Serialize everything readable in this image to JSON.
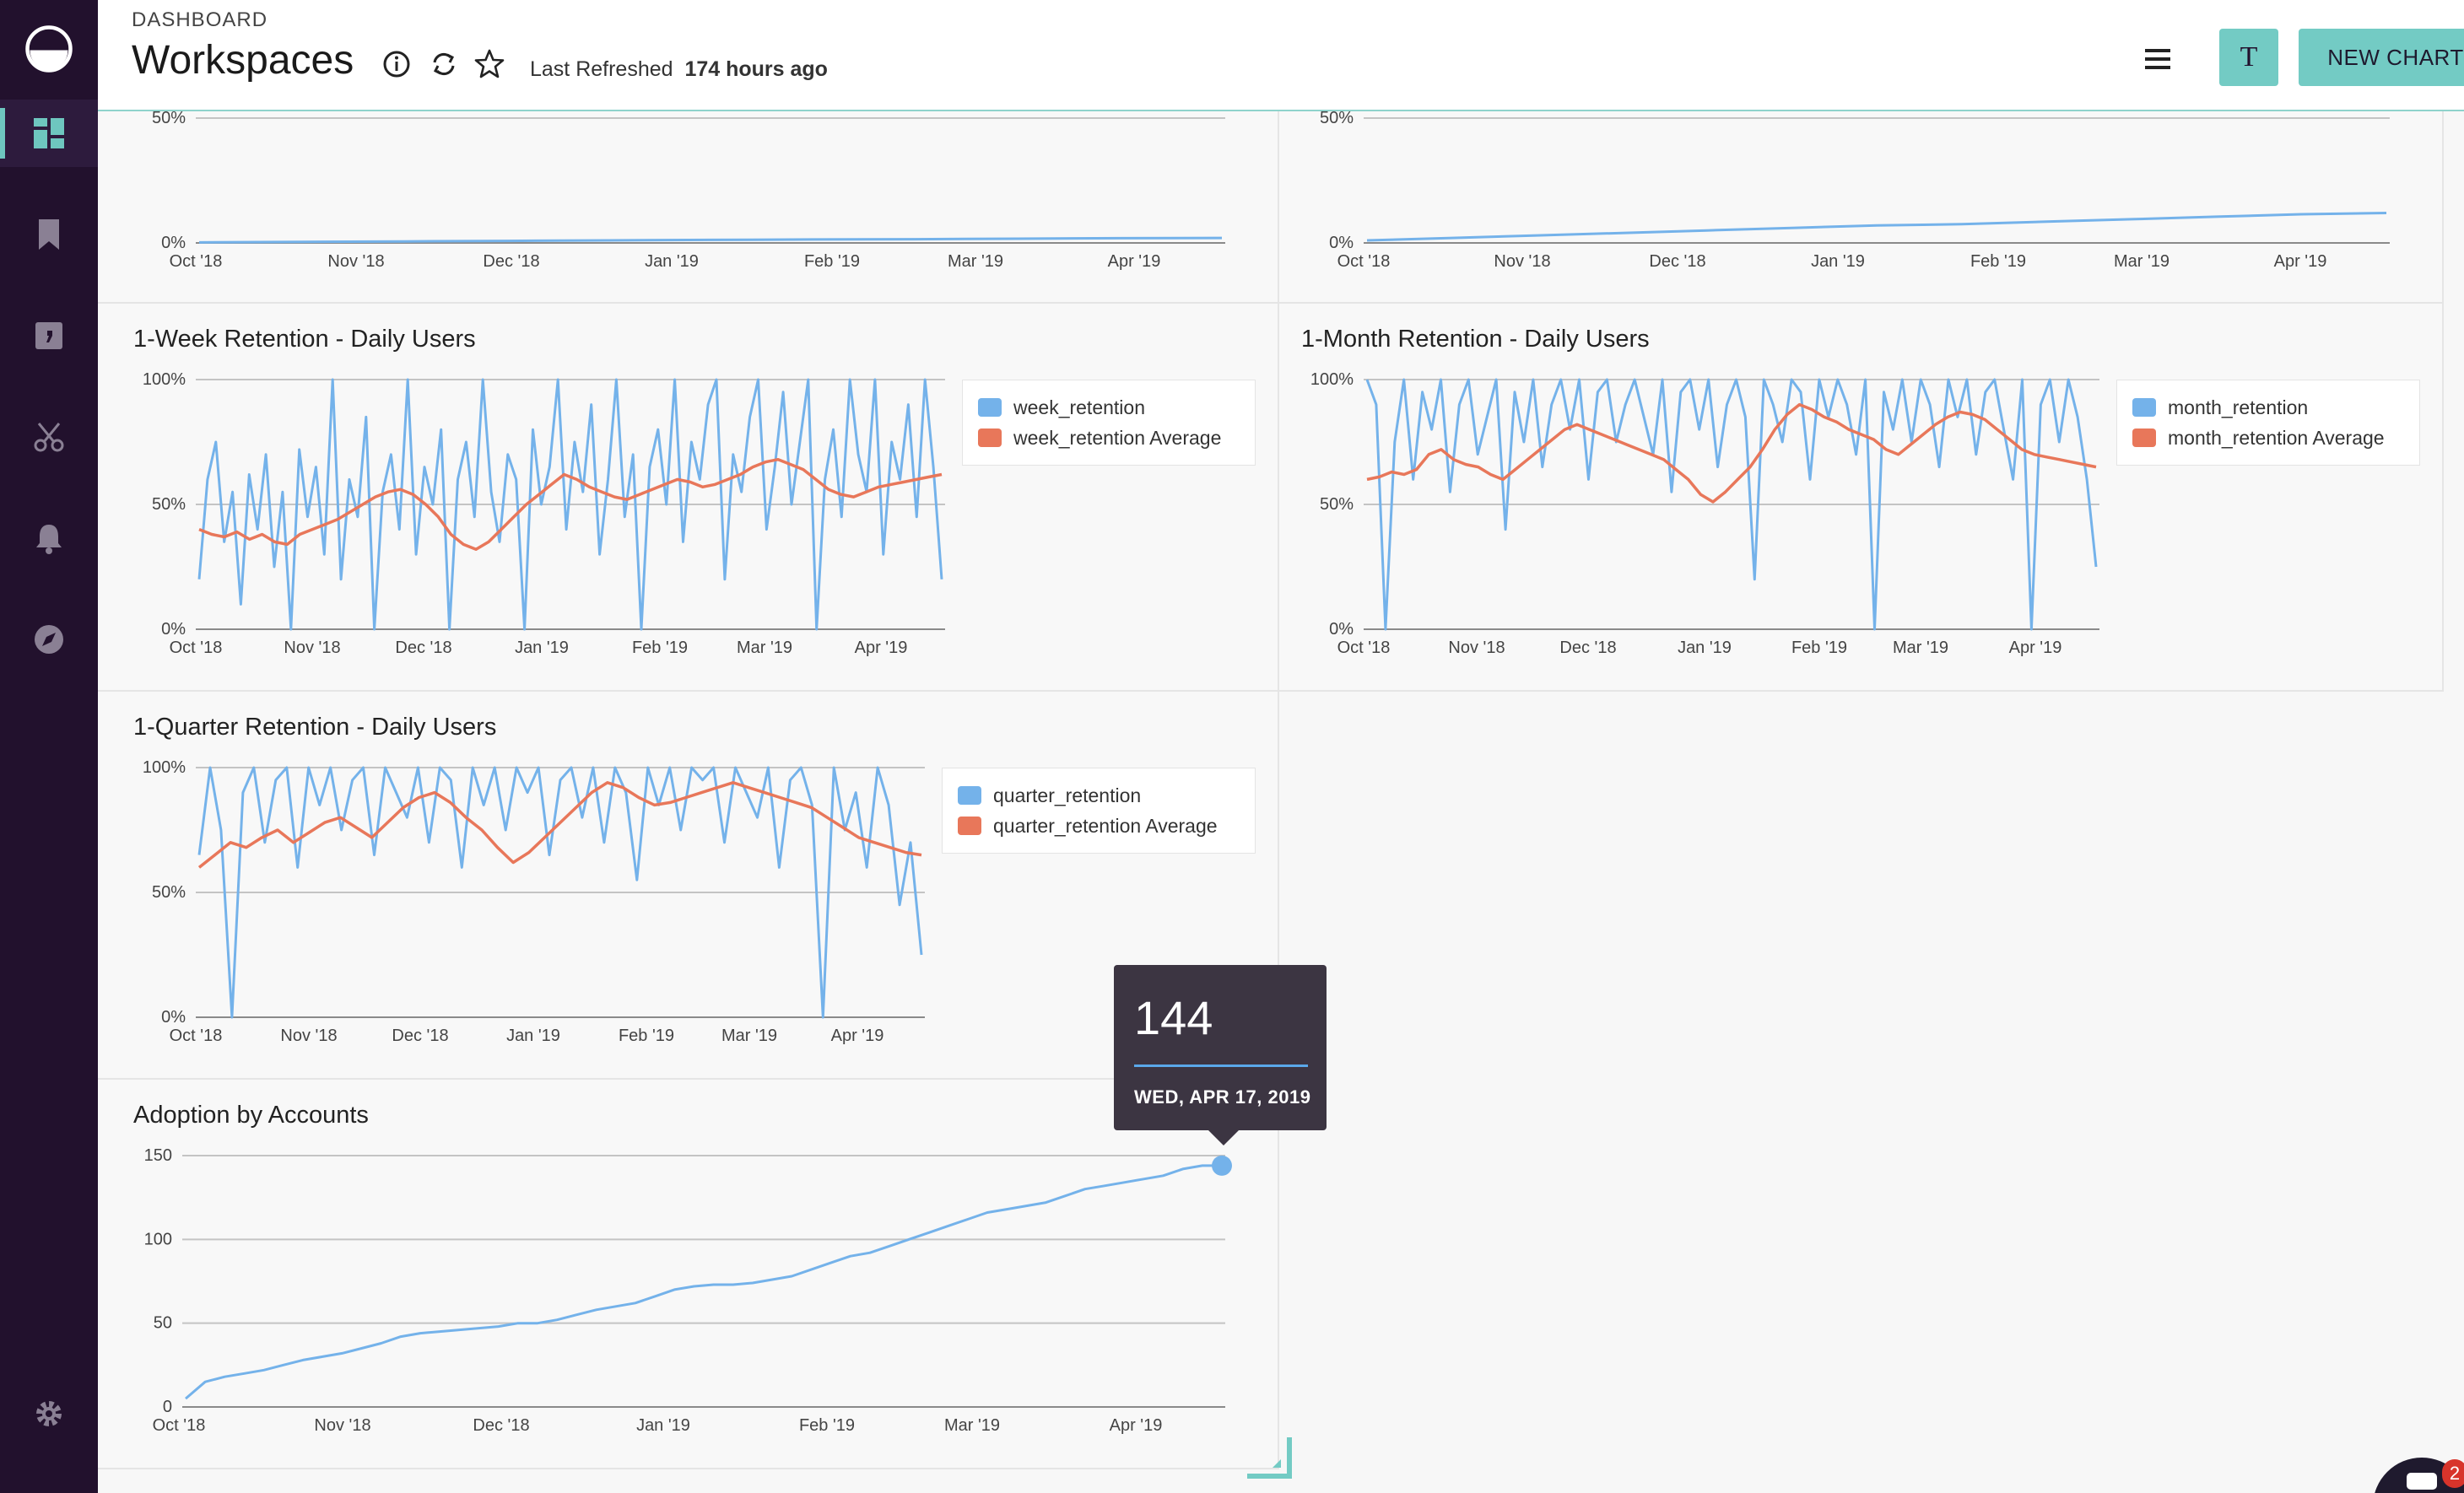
{
  "header": {
    "breadcrumb": "DASHBOARD",
    "title": "Workspaces",
    "last_refreshed_label": "Last Refreshed",
    "last_refreshed_value": "174 hours ago",
    "avatar_letter": "T",
    "new_chart_label": "NEW CHART"
  },
  "sidebar": {
    "items": [
      {
        "icon": "logo-icon"
      },
      {
        "icon": "dashboard-icon",
        "active": true
      },
      {
        "icon": "bookmark-icon"
      },
      {
        "icon": "reports-icon"
      },
      {
        "icon": "scissors-icon"
      },
      {
        "icon": "bell-icon"
      },
      {
        "icon": "compass-icon"
      },
      {
        "icon": "gear-icon"
      }
    ]
  },
  "colors": {
    "sidebar": "#22112d",
    "accent": "#73cbc4",
    "series_blue": "#74b2ea",
    "series_orange": "#e8775a"
  },
  "tooltip": {
    "value": "144",
    "date": "WED, APR 17, 2019"
  },
  "notification_badge": "2",
  "panels": {
    "top_left": {
      "title": ""
    },
    "top_right": {
      "title": ""
    },
    "week": {
      "title": "1-Week Retention - Daily Users"
    },
    "month": {
      "title": "1-Month Retention - Daily Users"
    },
    "quarter": {
      "title": "1-Quarter Retention - Daily Users"
    },
    "adoption": {
      "title": "Adoption by Accounts"
    }
  },
  "chart_data": [
    {
      "id": "top_left",
      "type": "line",
      "title": "",
      "x_ticks": [
        "Oct '18",
        "Nov '18",
        "Dec '18",
        "Jan '19",
        "Feb '19",
        "Mar '19",
        "Apr '19"
      ],
      "y_ticks": [
        "0%",
        "50%"
      ],
      "ylim": [
        0,
        50
      ],
      "series": [
        {
          "values": [
            0.2,
            0.4,
            0.6,
            0.8,
            1.0,
            1.2,
            1.4,
            1.5,
            1.7,
            1.9,
            2.0
          ]
        }
      ]
    },
    {
      "id": "top_right",
      "type": "line",
      "title": "",
      "x_ticks": [
        "Oct '18",
        "Nov '18",
        "Dec '18",
        "Jan '19",
        "Feb '19",
        "Mar '19",
        "Apr '19"
      ],
      "y_ticks": [
        "0%",
        "50%"
      ],
      "ylim": [
        0,
        50
      ],
      "series": [
        {
          "values": [
            1,
            2,
            3,
            4,
            5,
            6,
            7,
            7.5,
            8.5,
            9.5,
            10.5,
            11.5,
            12
          ]
        }
      ]
    },
    {
      "id": "week",
      "type": "line",
      "title": "1-Week Retention - Daily Users",
      "x_ticks": [
        "Oct '18",
        "Nov '18",
        "Dec '18",
        "Jan '19",
        "Feb '19",
        "Mar '19",
        "Apr '19"
      ],
      "y_ticks": [
        "0%",
        "50%",
        "100%"
      ],
      "ylim": [
        0,
        100
      ],
      "legend": [
        "week_retention",
        "week_retention Average"
      ],
      "series": [
        {
          "name": "week_retention",
          "values": [
            20,
            60,
            75,
            35,
            55,
            10,
            62,
            40,
            70,
            25,
            55,
            0,
            72,
            45,
            65,
            30,
            100,
            20,
            60,
            45,
            85,
            0,
            55,
            70,
            40,
            100,
            30,
            65,
            50,
            80,
            0,
            60,
            75,
            45,
            100,
            55,
            35,
            70,
            60,
            0,
            80,
            50,
            65,
            100,
            40,
            75,
            55,
            90,
            30,
            60,
            100,
            45,
            70,
            0,
            65,
            80,
            50,
            100,
            35,
            75,
            60,
            90,
            100,
            20,
            70,
            55,
            85,
            100,
            40,
            65,
            95,
            50,
            75,
            100,
            0,
            60,
            80,
            45,
            100,
            70,
            55,
            100,
            30,
            75,
            60,
            90,
            45,
            100,
            65,
            20
          ]
        },
        {
          "name": "week_retention Average",
          "values": [
            40,
            38,
            37,
            39,
            36,
            38,
            35,
            34,
            38,
            40,
            42,
            44,
            47,
            50,
            53,
            55,
            56,
            54,
            50,
            45,
            38,
            34,
            32,
            35,
            40,
            45,
            50,
            54,
            58,
            62,
            60,
            57,
            55,
            53,
            52,
            54,
            56,
            58,
            60,
            59,
            57,
            58,
            60,
            62,
            65,
            67,
            68,
            66,
            64,
            60,
            56,
            54,
            53,
            55,
            57,
            58,
            59,
            60,
            61,
            62
          ]
        }
      ]
    },
    {
      "id": "month",
      "type": "line",
      "title": "1-Month Retention - Daily Users",
      "x_ticks": [
        "Oct '18",
        "Nov '18",
        "Dec '18",
        "Jan '19",
        "Feb '19",
        "Mar '19",
        "Apr '19"
      ],
      "y_ticks": [
        "0%",
        "50%",
        "100%"
      ],
      "ylim": [
        0,
        100
      ],
      "legend": [
        "month_retention",
        "month_retention Average"
      ],
      "series": [
        {
          "name": "month_retention",
          "values": [
            100,
            90,
            0,
            75,
            100,
            60,
            95,
            80,
            100,
            55,
            90,
            100,
            70,
            85,
            100,
            40,
            95,
            75,
            100,
            65,
            90,
            100,
            80,
            100,
            60,
            95,
            100,
            75,
            90,
            100,
            85,
            70,
            100,
            55,
            95,
            100,
            80,
            100,
            65,
            90,
            100,
            85,
            20,
            100,
            90,
            75,
            100,
            95,
            60,
            100,
            85,
            100,
            90,
            70,
            100,
            0,
            95,
            80,
            100,
            75,
            100,
            90,
            65,
            100,
            85,
            100,
            70,
            95,
            100,
            80,
            60,
            100,
            0,
            90,
            100,
            75,
            100,
            85,
            60,
            25
          ]
        },
        {
          "name": "month_retention Average",
          "values": [
            60,
            61,
            63,
            62,
            64,
            70,
            72,
            68,
            66,
            65,
            62,
            60,
            64,
            68,
            72,
            76,
            80,
            82,
            80,
            78,
            76,
            74,
            72,
            70,
            68,
            64,
            60,
            54,
            51,
            55,
            60,
            65,
            72,
            80,
            86,
            90,
            88,
            85,
            83,
            80,
            78,
            76,
            72,
            70,
            74,
            78,
            82,
            85,
            87,
            86,
            84,
            80,
            76,
            72,
            70,
            69,
            68,
            67,
            66,
            65
          ]
        }
      ]
    },
    {
      "id": "quarter",
      "type": "line",
      "title": "1-Quarter Retention - Daily Users",
      "x_ticks": [
        "Oct '18",
        "Nov '18",
        "Dec '18",
        "Jan '19",
        "Feb '19",
        "Mar '19",
        "Apr '19"
      ],
      "y_ticks": [
        "0%",
        "50%",
        "100%"
      ],
      "ylim": [
        0,
        100
      ],
      "legend": [
        "quarter_retention",
        "quarter_retention Average"
      ],
      "series": [
        {
          "name": "quarter_retention",
          "values": [
            65,
            100,
            75,
            0,
            90,
            100,
            70,
            95,
            100,
            60,
            100,
            85,
            100,
            75,
            95,
            100,
            65,
            100,
            90,
            80,
            100,
            70,
            100,
            95,
            60,
            100,
            85,
            100,
            75,
            100,
            90,
            100,
            65,
            95,
            100,
            80,
            100,
            70,
            100,
            90,
            55,
            100,
            85,
            100,
            75,
            100,
            95,
            100,
            70,
            100,
            90,
            80,
            100,
            60,
            95,
            100,
            85,
            0,
            100,
            75,
            90,
            60,
            100,
            85,
            45,
            70,
            25
          ]
        },
        {
          "name": "quarter_retention Average",
          "values": [
            60,
            65,
            70,
            68,
            72,
            75,
            70,
            74,
            78,
            80,
            76,
            72,
            78,
            84,
            88,
            90,
            86,
            80,
            75,
            68,
            62,
            66,
            72,
            78,
            84,
            90,
            94,
            92,
            88,
            85,
            86,
            88,
            90,
            92,
            94,
            92,
            90,
            88,
            86,
            84,
            80,
            76,
            72,
            70,
            68,
            66,
            65
          ]
        }
      ]
    },
    {
      "id": "adoption",
      "type": "line",
      "title": "Adoption by Accounts",
      "x_ticks": [
        "Oct '18",
        "Nov '18",
        "Dec '18",
        "Jan '19",
        "Feb '19",
        "Mar '19",
        "Apr '19"
      ],
      "y_ticks": [
        "0",
        "50",
        "100",
        "150"
      ],
      "ylim": [
        0,
        150
      ],
      "series": [
        {
          "values": [
            5,
            15,
            18,
            20,
            22,
            25,
            28,
            30,
            32,
            35,
            38,
            42,
            44,
            45,
            46,
            47,
            48,
            50,
            50,
            52,
            55,
            58,
            60,
            62,
            66,
            70,
            72,
            73,
            73,
            74,
            76,
            78,
            82,
            86,
            90,
            92,
            96,
            100,
            104,
            108,
            112,
            116,
            118,
            120,
            122,
            126,
            130,
            132,
            134,
            136,
            138,
            142,
            144,
            144
          ]
        }
      ]
    }
  ]
}
